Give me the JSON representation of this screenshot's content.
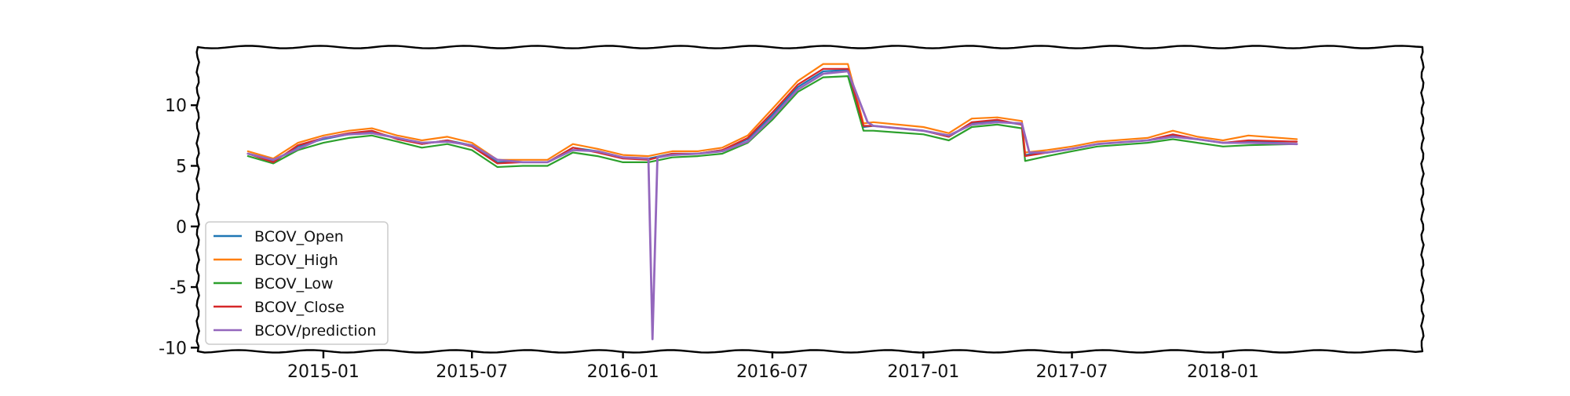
{
  "chart_data": {
    "type": "line",
    "title": "",
    "xlabel": "",
    "ylabel": "",
    "x_ticks": [
      "2015-01",
      "2015-07",
      "2016-01",
      "2016-07",
      "2017-01",
      "2017-07",
      "2018-01"
    ],
    "y_ticks": [
      "10",
      "5",
      "0",
      "-5",
      "-10"
    ],
    "xlim": [
      "2014-08-01",
      "2018-09-01"
    ],
    "ylim": [
      -10.3,
      14.8
    ],
    "grid": false,
    "legend_position": "lower left",
    "series": [
      {
        "name": "BCOV_Open",
        "color": "#1f77b4",
        "points": [
          [
            "2014-10-01",
            6.0
          ],
          [
            "2014-11-01",
            5.4
          ],
          [
            "2014-12-01",
            6.6
          ],
          [
            "2015-01-01",
            7.2
          ],
          [
            "2015-02-01",
            7.6
          ],
          [
            "2015-03-01",
            7.8
          ],
          [
            "2015-04-01",
            7.3
          ],
          [
            "2015-05-01",
            6.8
          ],
          [
            "2015-06-01",
            7.1
          ],
          [
            "2015-07-01",
            6.7
          ],
          [
            "2015-08-01",
            5.3
          ],
          [
            "2015-09-01",
            5.3
          ],
          [
            "2015-10-01",
            5.3
          ],
          [
            "2015-11-01",
            6.5
          ],
          [
            "2015-12-01",
            6.2
          ],
          [
            "2016-01-01",
            5.7
          ],
          [
            "2016-02-01",
            5.6
          ],
          [
            "2016-03-01",
            6.0
          ],
          [
            "2016-04-01",
            6.0
          ],
          [
            "2016-05-01",
            6.3
          ],
          [
            "2016-06-01",
            7.2
          ],
          [
            "2016-07-01",
            9.2
          ],
          [
            "2016-08-01",
            11.5
          ],
          [
            "2016-09-01",
            12.8
          ],
          [
            "2016-10-01",
            12.9
          ],
          [
            "2016-10-20",
            8.2
          ],
          [
            "2016-11-01",
            8.3
          ],
          [
            "2017-01-01",
            7.9
          ],
          [
            "2017-02-01",
            7.4
          ],
          [
            "2017-03-01",
            8.5
          ],
          [
            "2017-04-01",
            8.7
          ],
          [
            "2017-05-01",
            8.4
          ],
          [
            "2017-05-05",
            5.9
          ],
          [
            "2017-06-01",
            6.1
          ],
          [
            "2017-07-01",
            6.4
          ],
          [
            "2017-08-01",
            6.8
          ],
          [
            "2017-10-01",
            7.1
          ],
          [
            "2017-11-01",
            7.5
          ],
          [
            "2017-12-01",
            7.2
          ],
          [
            "2018-01-01",
            6.9
          ],
          [
            "2018-02-01",
            7.0
          ],
          [
            "2018-04-01",
            7.0
          ]
        ]
      },
      {
        "name": "BCOV_High",
        "color": "#ff7f0e",
        "points": [
          [
            "2014-10-01",
            6.2
          ],
          [
            "2014-11-01",
            5.6
          ],
          [
            "2014-12-01",
            6.9
          ],
          [
            "2015-01-01",
            7.5
          ],
          [
            "2015-02-01",
            7.9
          ],
          [
            "2015-03-01",
            8.1
          ],
          [
            "2015-04-01",
            7.5
          ],
          [
            "2015-05-01",
            7.1
          ],
          [
            "2015-06-01",
            7.4
          ],
          [
            "2015-07-01",
            6.9
          ],
          [
            "2015-08-01",
            5.5
          ],
          [
            "2015-09-01",
            5.5
          ],
          [
            "2015-10-01",
            5.5
          ],
          [
            "2015-11-01",
            6.8
          ],
          [
            "2015-12-01",
            6.4
          ],
          [
            "2016-01-01",
            5.9
          ],
          [
            "2016-02-01",
            5.8
          ],
          [
            "2016-03-01",
            6.2
          ],
          [
            "2016-04-01",
            6.2
          ],
          [
            "2016-05-01",
            6.5
          ],
          [
            "2016-06-01",
            7.5
          ],
          [
            "2016-07-01",
            9.7
          ],
          [
            "2016-08-01",
            12.0
          ],
          [
            "2016-09-01",
            13.4
          ],
          [
            "2016-10-01",
            13.4
          ],
          [
            "2016-10-20",
            8.5
          ],
          [
            "2016-11-01",
            8.6
          ],
          [
            "2017-01-01",
            8.2
          ],
          [
            "2017-02-01",
            7.7
          ],
          [
            "2017-03-01",
            8.9
          ],
          [
            "2017-04-01",
            9.0
          ],
          [
            "2017-05-01",
            8.7
          ],
          [
            "2017-05-05",
            6.1
          ],
          [
            "2017-06-01",
            6.3
          ],
          [
            "2017-07-01",
            6.6
          ],
          [
            "2017-08-01",
            7.0
          ],
          [
            "2017-10-01",
            7.3
          ],
          [
            "2017-11-01",
            7.9
          ],
          [
            "2017-12-01",
            7.4
          ],
          [
            "2018-01-01",
            7.1
          ],
          [
            "2018-02-01",
            7.5
          ],
          [
            "2018-04-01",
            7.2
          ]
        ]
      },
      {
        "name": "BCOV_Low",
        "color": "#2ca02c",
        "points": [
          [
            "2014-10-01",
            5.8
          ],
          [
            "2014-11-01",
            5.2
          ],
          [
            "2014-12-01",
            6.3
          ],
          [
            "2015-01-01",
            6.9
          ],
          [
            "2015-02-01",
            7.3
          ],
          [
            "2015-03-01",
            7.5
          ],
          [
            "2015-04-01",
            7.0
          ],
          [
            "2015-05-01",
            6.5
          ],
          [
            "2015-06-01",
            6.8
          ],
          [
            "2015-07-01",
            6.3
          ],
          [
            "2015-08-01",
            4.9
          ],
          [
            "2015-09-01",
            5.0
          ],
          [
            "2015-10-01",
            5.0
          ],
          [
            "2015-11-01",
            6.1
          ],
          [
            "2015-12-01",
            5.8
          ],
          [
            "2016-01-01",
            5.3
          ],
          [
            "2016-02-01",
            5.3
          ],
          [
            "2016-03-01",
            5.7
          ],
          [
            "2016-04-01",
            5.8
          ],
          [
            "2016-05-01",
            6.0
          ],
          [
            "2016-06-01",
            6.9
          ],
          [
            "2016-07-01",
            8.8
          ],
          [
            "2016-08-01",
            11.1
          ],
          [
            "2016-09-01",
            12.3
          ],
          [
            "2016-10-01",
            12.4
          ],
          [
            "2016-10-20",
            7.9
          ],
          [
            "2016-11-01",
            7.9
          ],
          [
            "2017-01-01",
            7.6
          ],
          [
            "2017-02-01",
            7.1
          ],
          [
            "2017-03-01",
            8.2
          ],
          [
            "2017-04-01",
            8.4
          ],
          [
            "2017-05-01",
            8.1
          ],
          [
            "2017-05-05",
            5.4
          ],
          [
            "2017-06-01",
            5.8
          ],
          [
            "2017-07-01",
            6.2
          ],
          [
            "2017-08-01",
            6.6
          ],
          [
            "2017-10-01",
            6.9
          ],
          [
            "2017-11-01",
            7.2
          ],
          [
            "2017-12-01",
            6.9
          ],
          [
            "2018-01-01",
            6.6
          ],
          [
            "2018-02-01",
            6.7
          ],
          [
            "2018-04-01",
            6.8
          ]
        ]
      },
      {
        "name": "BCOV_Close",
        "color": "#d62728",
        "points": [
          [
            "2014-10-01",
            6.0
          ],
          [
            "2014-11-01",
            5.3
          ],
          [
            "2014-12-01",
            6.7
          ],
          [
            "2015-01-01",
            7.3
          ],
          [
            "2015-02-01",
            7.7
          ],
          [
            "2015-03-01",
            7.9
          ],
          [
            "2015-04-01",
            7.2
          ],
          [
            "2015-05-01",
            6.8
          ],
          [
            "2015-06-01",
            7.1
          ],
          [
            "2015-07-01",
            6.6
          ],
          [
            "2015-08-01",
            5.2
          ],
          [
            "2015-09-01",
            5.3
          ],
          [
            "2015-10-01",
            5.3
          ],
          [
            "2015-11-01",
            6.5
          ],
          [
            "2015-12-01",
            6.1
          ],
          [
            "2016-01-01",
            5.6
          ],
          [
            "2016-02-01",
            5.5
          ],
          [
            "2016-03-01",
            6.0
          ],
          [
            "2016-04-01",
            6.0
          ],
          [
            "2016-05-01",
            6.3
          ],
          [
            "2016-06-01",
            7.3
          ],
          [
            "2016-07-01",
            9.4
          ],
          [
            "2016-08-01",
            11.7
          ],
          [
            "2016-09-01",
            13.0
          ],
          [
            "2016-10-01",
            13.0
          ],
          [
            "2016-10-20",
            8.3
          ],
          [
            "2016-11-01",
            8.3
          ],
          [
            "2017-01-01",
            7.9
          ],
          [
            "2017-02-01",
            7.4
          ],
          [
            "2017-03-01",
            8.6
          ],
          [
            "2017-04-01",
            8.8
          ],
          [
            "2017-05-01",
            8.4
          ],
          [
            "2017-05-05",
            5.8
          ],
          [
            "2017-06-01",
            6.1
          ],
          [
            "2017-07-01",
            6.4
          ],
          [
            "2017-08-01",
            6.8
          ],
          [
            "2017-10-01",
            7.1
          ],
          [
            "2017-11-01",
            7.6
          ],
          [
            "2017-12-01",
            7.2
          ],
          [
            "2018-01-01",
            6.9
          ],
          [
            "2018-02-01",
            7.1
          ],
          [
            "2018-04-01",
            7.0
          ]
        ]
      },
      {
        "name": "BCOV/prediction",
        "color": "#9467bd",
        "points": [
          [
            "2014-10-01",
            6.0
          ],
          [
            "2014-11-01",
            5.5
          ],
          [
            "2014-12-01",
            6.4
          ],
          [
            "2015-01-01",
            7.3
          ],
          [
            "2015-02-01",
            7.6
          ],
          [
            "2015-03-01",
            7.7
          ],
          [
            "2015-04-01",
            7.3
          ],
          [
            "2015-05-01",
            6.9
          ],
          [
            "2015-06-01",
            7.0
          ],
          [
            "2015-07-01",
            6.7
          ],
          [
            "2015-08-01",
            5.5
          ],
          [
            "2015-09-01",
            5.3
          ],
          [
            "2015-10-01",
            5.3
          ],
          [
            "2015-11-01",
            6.3
          ],
          [
            "2015-12-01",
            6.2
          ],
          [
            "2016-01-01",
            5.7
          ],
          [
            "2016-02-01",
            5.6
          ],
          [
            "2016-02-06",
            -9.3
          ],
          [
            "2016-02-12",
            5.7
          ],
          [
            "2016-03-01",
            5.9
          ],
          [
            "2016-04-01",
            6.0
          ],
          [
            "2016-05-01",
            6.2
          ],
          [
            "2016-06-01",
            7.0
          ],
          [
            "2016-07-01",
            9.0
          ],
          [
            "2016-08-01",
            11.3
          ],
          [
            "2016-09-01",
            12.6
          ],
          [
            "2016-10-01",
            12.8
          ],
          [
            "2016-10-25",
            8.6
          ],
          [
            "2016-11-01",
            8.3
          ],
          [
            "2017-01-01",
            7.9
          ],
          [
            "2017-02-01",
            7.5
          ],
          [
            "2017-03-01",
            8.4
          ],
          [
            "2017-04-01",
            8.6
          ],
          [
            "2017-05-01",
            8.5
          ],
          [
            "2017-05-10",
            6.1
          ],
          [
            "2017-06-01",
            6.1
          ],
          [
            "2017-07-01",
            6.4
          ],
          [
            "2017-08-01",
            6.8
          ],
          [
            "2017-10-01",
            7.1
          ],
          [
            "2017-11-01",
            7.4
          ],
          [
            "2017-12-01",
            7.2
          ],
          [
            "2018-01-01",
            6.9
          ],
          [
            "2018-02-01",
            6.9
          ],
          [
            "2018-04-01",
            6.8
          ]
        ]
      }
    ]
  }
}
